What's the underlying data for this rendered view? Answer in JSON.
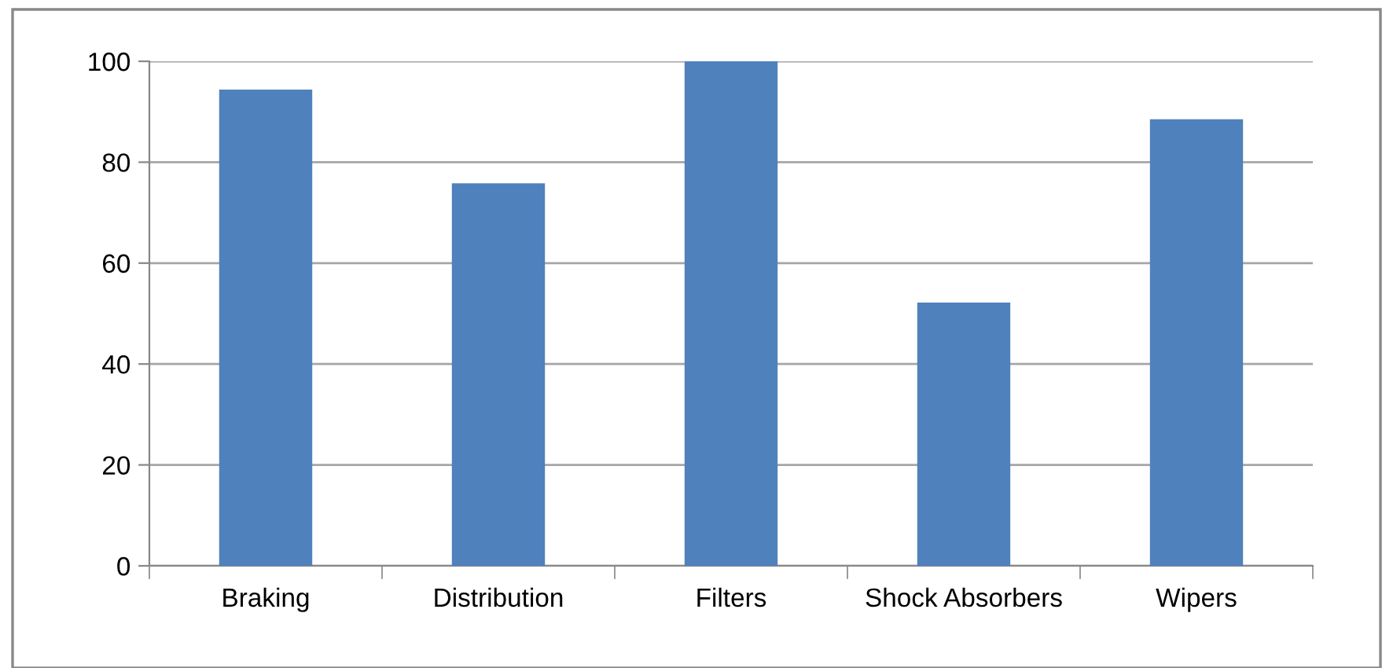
{
  "chart_data": {
    "type": "bar",
    "categories": [
      "Braking",
      "Distribution",
      "Filters",
      "Shock Absorbers",
      "Wipers"
    ],
    "values": [
      94.4,
      75.8,
      100,
      52.2,
      88.5
    ],
    "color": "#4f81bd",
    "ylim": [
      0,
      100
    ],
    "yticks": [
      0,
      20,
      40,
      60,
      80,
      100
    ],
    "grid": "y",
    "legend": false
  }
}
